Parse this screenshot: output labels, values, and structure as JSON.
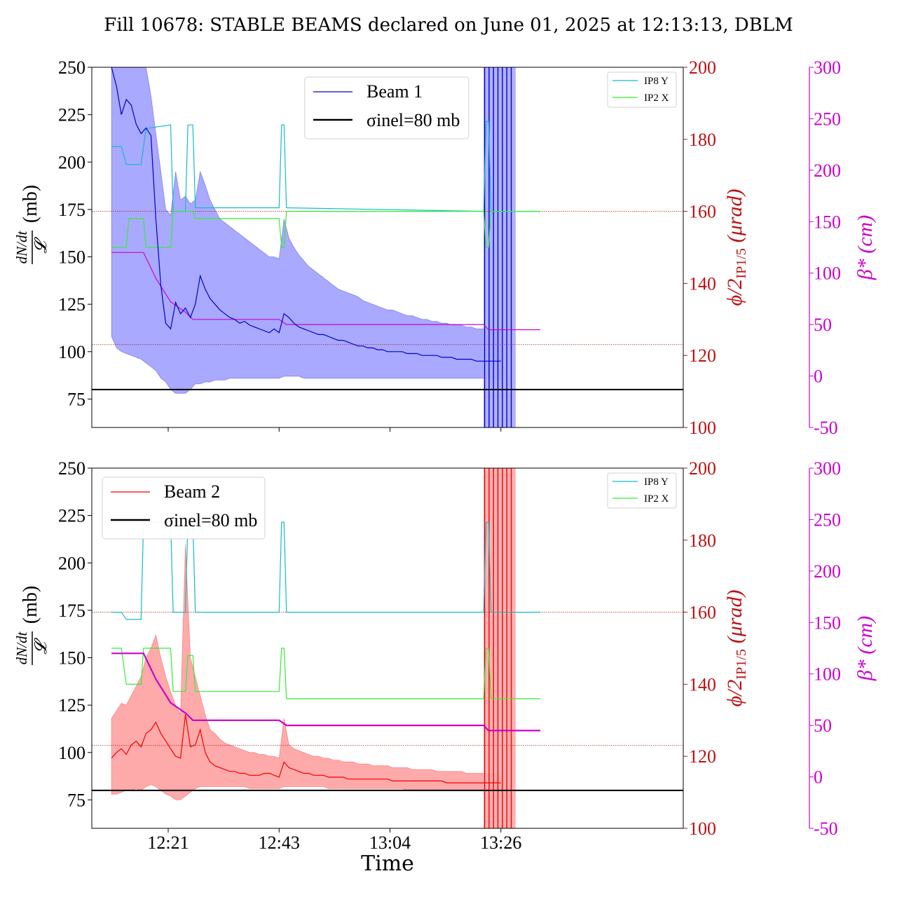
{
  "figure": {
    "title": "Fill 10678: STABLE BEAMS declared on June 01, 2025 at 12:13:13, DBLM",
    "xlabel": "Time"
  },
  "colors": {
    "beam1": "#0000cc",
    "beam1_band": "#a9a9ff",
    "beam2": "#ee0000",
    "beam2_band": "#ffaaaa",
    "ip8y": "#12bcc4",
    "ip2x": "#33ee33",
    "angle_axis": "#bb1111",
    "beta": "#cc00cc",
    "sigma": "#000000"
  },
  "chart_data": [
    {
      "type": "line",
      "panel": "top",
      "ylabel": "dN/dt / 𝓛 (mb)",
      "ylabel_parts": {
        "frac_num": "dN/dt",
        "frac_den": "𝓛",
        "unit": "(mb)"
      },
      "y2label": "ϕ/2IP1/5 (μrad)",
      "y2label_parts": {
        "main": "ϕ/2",
        "sub": "IP1/5",
        "unit": "(μrad)"
      },
      "y3label": "β* (cm)",
      "ylim": [
        60,
        250
      ],
      "y2lim": [
        100,
        200
      ],
      "y3lim": [
        -50,
        300
      ],
      "yticks": [
        75,
        100,
        125,
        150,
        175,
        200,
        225,
        250
      ],
      "y2ticks": [
        100,
        120,
        140,
        160,
        180,
        200
      ],
      "y3ticks": [
        -50,
        0,
        50,
        100,
        150,
        200,
        250,
        300
      ],
      "xlim_min": [
        0,
        120
      ],
      "xticks_min": [
        15.5,
        38.0,
        60.5,
        83.0
      ],
      "xtick_labels": [],
      "legend_main": {
        "position": "top-center",
        "entries": [
          "Beam 1",
          "σinel=80 mb"
        ]
      },
      "legend_small": {
        "position": "top-right",
        "entries": [
          "IP8 Y",
          "IP2 X"
        ]
      },
      "sigma_inel_mb": 80,
      "angle_reflines_urad": [
        160,
        123
      ],
      "beam_rate": {
        "name": "Beam 1",
        "t_min": [
          4,
          5,
          6,
          7,
          8,
          9,
          10,
          11,
          12,
          13,
          14,
          15,
          16,
          17,
          18,
          19,
          20,
          21,
          22,
          23,
          24,
          25,
          26,
          27,
          28,
          29,
          30,
          31,
          32,
          33,
          34,
          35,
          36,
          37,
          38,
          39,
          40,
          41,
          42,
          43,
          44,
          45,
          46,
          47,
          48,
          49,
          50,
          51,
          52,
          53,
          54,
          55,
          56,
          57,
          58,
          59,
          60,
          61,
          62,
          63,
          64,
          65,
          66,
          67,
          68,
          69,
          70,
          71,
          72,
          73,
          74,
          75,
          76,
          77,
          78,
          79,
          80,
          81,
          82,
          83
        ],
        "value_mb": [
          250,
          240,
          225,
          233,
          230,
          220,
          215,
          218,
          214,
          170,
          135,
          115,
          112,
          126,
          120,
          123,
          118,
          125,
          140,
          133,
          128,
          125,
          122,
          120,
          118,
          117,
          115,
          116,
          114,
          113,
          112,
          111,
          110,
          112,
          110,
          120,
          118,
          115,
          113,
          112,
          111,
          110,
          109,
          109,
          108,
          107,
          106,
          106,
          105,
          104,
          103,
          103,
          102,
          102,
          101,
          101,
          100,
          100,
          100,
          100,
          99,
          99,
          99,
          98,
          98,
          98,
          98,
          97,
          97,
          97,
          96,
          96,
          96,
          96,
          95,
          95,
          95,
          95,
          95,
          95
        ],
        "band_low_mb": [
          108,
          102,
          100,
          99,
          98,
          97,
          96,
          94,
          92,
          90,
          86,
          84,
          80,
          78,
          78,
          78,
          80,
          83,
          83,
          84,
          84,
          85,
          85,
          85,
          86,
          86,
          86,
          86,
          86,
          86,
          86,
          86,
          86,
          86,
          86,
          87,
          87,
          87,
          87,
          86,
          86,
          86,
          86,
          86,
          86,
          86,
          86,
          86,
          86,
          86,
          86,
          86,
          86,
          86,
          86,
          86,
          86,
          86,
          86,
          86,
          86,
          86,
          86,
          86,
          86,
          86,
          86,
          86,
          86,
          86,
          86,
          86,
          86,
          86,
          86,
          86,
          86,
          86,
          86,
          85
        ],
        "band_high_mb": [
          250,
          250,
          250,
          250,
          250,
          250,
          250,
          250,
          235,
          215,
          195,
          175,
          172,
          195,
          180,
          182,
          178,
          180,
          195,
          188,
          180,
          175,
          170,
          168,
          166,
          164,
          162,
          160,
          158,
          156,
          154,
          152,
          150,
          150,
          149,
          170,
          160,
          155,
          151,
          148,
          145,
          143,
          141,
          139,
          137,
          135,
          133,
          132,
          131,
          130,
          129,
          127,
          126,
          125,
          124,
          123,
          122,
          122,
          121,
          120,
          119,
          119,
          118,
          117,
          117,
          116,
          116,
          115,
          115,
          114,
          114,
          114,
          113,
          113,
          112,
          112,
          112,
          111,
          111,
          111
        ]
      },
      "spike_region_min": [
        79.5,
        86
      ],
      "ip8_y_urad": [
        [
          4,
          178
        ],
        [
          6,
          178
        ],
        [
          7,
          173
        ],
        [
          10,
          173
        ],
        [
          11,
          183
        ],
        [
          16,
          184
        ],
        [
          16.5,
          160
        ],
        [
          19,
          160
        ],
        [
          19.5,
          184
        ],
        [
          20.5,
          184
        ],
        [
          21,
          161
        ],
        [
          38,
          161
        ],
        [
          38.5,
          184
        ],
        [
          39,
          184
        ],
        [
          39.5,
          161
        ],
        [
          79.5,
          160
        ],
        [
          80,
          185
        ],
        [
          80.5,
          185
        ],
        [
          81,
          160
        ],
        [
          91,
          160
        ]
      ],
      "ip2_x_urad": [
        [
          4,
          150
        ],
        [
          7,
          150
        ],
        [
          7.5,
          158
        ],
        [
          10.5,
          158
        ],
        [
          11,
          150
        ],
        [
          16,
          150
        ],
        [
          16.5,
          160
        ],
        [
          19,
          160
        ],
        [
          19.5,
          160
        ],
        [
          20.5,
          160
        ],
        [
          21,
          158
        ],
        [
          38,
          158
        ],
        [
          38.5,
          150
        ],
        [
          39,
          150
        ],
        [
          39.5,
          160
        ],
        [
          79.5,
          160
        ],
        [
          80,
          150
        ],
        [
          80.5,
          150
        ],
        [
          81,
          160
        ],
        [
          91,
          160
        ]
      ],
      "beta_cm": [
        [
          4,
          120
        ],
        [
          10.5,
          120
        ],
        [
          13,
          95
        ],
        [
          16,
          72
        ],
        [
          19,
          62
        ],
        [
          20.5,
          55
        ],
        [
          38,
          55
        ],
        [
          39.5,
          50
        ],
        [
          79.5,
          50
        ],
        [
          80.5,
          45
        ],
        [
          91,
          45
        ]
      ]
    },
    {
      "type": "line",
      "panel": "bottom",
      "ylabel": "dN/dt / 𝓛 (mb)",
      "ylabel_parts": {
        "frac_num": "dN/dt",
        "frac_den": "𝓛",
        "unit": "(mb)"
      },
      "y2label": "ϕ/2IP1/5 (μrad)",
      "y2label_parts": {
        "main": "ϕ/2",
        "sub": "IP1/5",
        "unit": "(μrad)"
      },
      "y3label": "β* (cm)",
      "ylim": [
        60,
        250
      ],
      "y2lim": [
        100,
        200
      ],
      "y3lim": [
        -50,
        300
      ],
      "yticks": [
        75,
        100,
        125,
        150,
        175,
        200,
        225,
        250
      ],
      "y2ticks": [
        100,
        120,
        140,
        160,
        180,
        200
      ],
      "y3ticks": [
        -50,
        0,
        50,
        100,
        150,
        200,
        250,
        300
      ],
      "xlim_min": [
        0,
        120
      ],
      "xticks_min": [
        15.5,
        38.0,
        60.5,
        83.0
      ],
      "xtick_labels": [
        "12:21",
        "12:43",
        "13:04",
        "13:26"
      ],
      "legend_main": {
        "position": "top-left",
        "entries": [
          "Beam 2",
          "σinel=80 mb"
        ]
      },
      "legend_small": {
        "position": "top-right",
        "entries": [
          "IP8 Y",
          "IP2 X"
        ]
      },
      "sigma_inel_mb": 80,
      "angle_reflines_urad": [
        160,
        123
      ],
      "beam_rate": {
        "name": "Beam 2",
        "t_min": [
          4,
          5,
          6,
          7,
          8,
          9,
          10,
          11,
          12,
          13,
          14,
          15,
          16,
          17,
          18,
          19,
          20,
          21,
          22,
          23,
          24,
          25,
          26,
          27,
          28,
          29,
          30,
          31,
          32,
          33,
          34,
          35,
          36,
          37,
          38,
          39,
          40,
          41,
          42,
          43,
          44,
          45,
          46,
          47,
          48,
          49,
          50,
          51,
          52,
          53,
          54,
          55,
          56,
          57,
          58,
          59,
          60,
          61,
          62,
          63,
          64,
          65,
          66,
          67,
          68,
          69,
          70,
          71,
          72,
          73,
          74,
          75,
          76,
          77,
          78,
          79,
          80,
          81,
          82,
          83
        ],
        "value_mb": [
          97,
          100,
          102,
          99,
          104,
          106,
          103,
          110,
          112,
          116,
          110,
          106,
          102,
          98,
          97,
          120,
          103,
          104,
          112,
          100,
          95,
          93,
          92,
          91,
          90,
          90,
          89,
          89,
          88,
          88,
          88,
          89,
          89,
          88,
          87,
          95,
          92,
          91,
          90,
          89,
          89,
          88,
          88,
          88,
          87,
          87,
          87,
          87,
          86,
          86,
          86,
          86,
          86,
          86,
          86,
          86,
          86,
          85,
          85,
          85,
          85,
          85,
          85,
          85,
          85,
          85,
          85,
          85,
          84,
          84,
          84,
          84,
          84,
          84,
          84,
          84,
          84,
          84,
          84,
          84
        ],
        "band_low_mb": [
          78,
          78,
          79,
          80,
          80,
          81,
          80,
          82,
          83,
          82,
          80,
          78,
          77,
          75,
          75,
          77,
          79,
          81,
          82,
          82,
          82,
          82,
          82,
          82,
          82,
          82,
          82,
          82,
          81,
          81,
          81,
          81,
          81,
          81,
          81,
          82,
          82,
          82,
          82,
          82,
          82,
          82,
          82,
          82,
          81,
          81,
          81,
          81,
          81,
          81,
          81,
          81,
          81,
          81,
          81,
          81,
          81,
          81,
          81,
          81,
          80,
          80,
          80,
          80,
          80,
          80,
          80,
          80,
          80,
          80,
          80,
          80,
          80,
          80,
          80,
          80,
          80,
          80,
          80,
          80
        ],
        "band_high_mb": [
          118,
          122,
          126,
          125,
          130,
          135,
          140,
          150,
          155,
          162,
          150,
          140,
          132,
          125,
          120,
          210,
          150,
          140,
          130,
          120,
          112,
          110,
          107,
          105,
          104,
          103,
          102,
          101,
          100,
          100,
          99,
          99,
          98,
          98,
          97,
          118,
          104,
          102,
          101,
          100,
          99,
          98,
          98,
          97,
          97,
          96,
          96,
          95,
          95,
          95,
          94,
          94,
          94,
          93,
          93,
          93,
          93,
          92,
          92,
          92,
          92,
          91,
          91,
          91,
          91,
          91,
          90,
          90,
          90,
          90,
          90,
          90,
          89,
          89,
          89,
          89,
          89,
          89,
          89,
          89
        ]
      },
      "spike_region_min": [
        79.5,
        86
      ],
      "ip8_y_urad": [
        [
          4,
          160
        ],
        [
          6,
          160
        ],
        [
          7,
          158
        ],
        [
          10,
          158
        ],
        [
          10.5,
          185
        ],
        [
          16,
          185
        ],
        [
          16.5,
          160
        ],
        [
          19,
          160
        ],
        [
          19.5,
          185
        ],
        [
          20.5,
          185
        ],
        [
          21,
          160
        ],
        [
          38,
          160
        ],
        [
          38.5,
          185
        ],
        [
          39,
          185
        ],
        [
          39.5,
          160
        ],
        [
          79.5,
          160
        ],
        [
          80,
          185
        ],
        [
          80.5,
          185
        ],
        [
          81,
          160
        ],
        [
          91,
          160
        ]
      ],
      "ip2_x_urad": [
        [
          4,
          150
        ],
        [
          6,
          150
        ],
        [
          7,
          140
        ],
        [
          10,
          140
        ],
        [
          10.5,
          150
        ],
        [
          16,
          150
        ],
        [
          16.5,
          138
        ],
        [
          19,
          138
        ],
        [
          19.5,
          148
        ],
        [
          20.5,
          148
        ],
        [
          21,
          138
        ],
        [
          38,
          138
        ],
        [
          38.5,
          150
        ],
        [
          39,
          150
        ],
        [
          39.5,
          136
        ],
        [
          79.5,
          136
        ],
        [
          80,
          150
        ],
        [
          80.5,
          150
        ],
        [
          81,
          136
        ],
        [
          91,
          136
        ]
      ],
      "beta_cm": [
        [
          4,
          120
        ],
        [
          10.5,
          120
        ],
        [
          13,
          95
        ],
        [
          16,
          72
        ],
        [
          19,
          62
        ],
        [
          20.5,
          55
        ],
        [
          38,
          55
        ],
        [
          39.5,
          50
        ],
        [
          79.5,
          50
        ],
        [
          80.5,
          45
        ],
        [
          91,
          45
        ]
      ]
    }
  ]
}
